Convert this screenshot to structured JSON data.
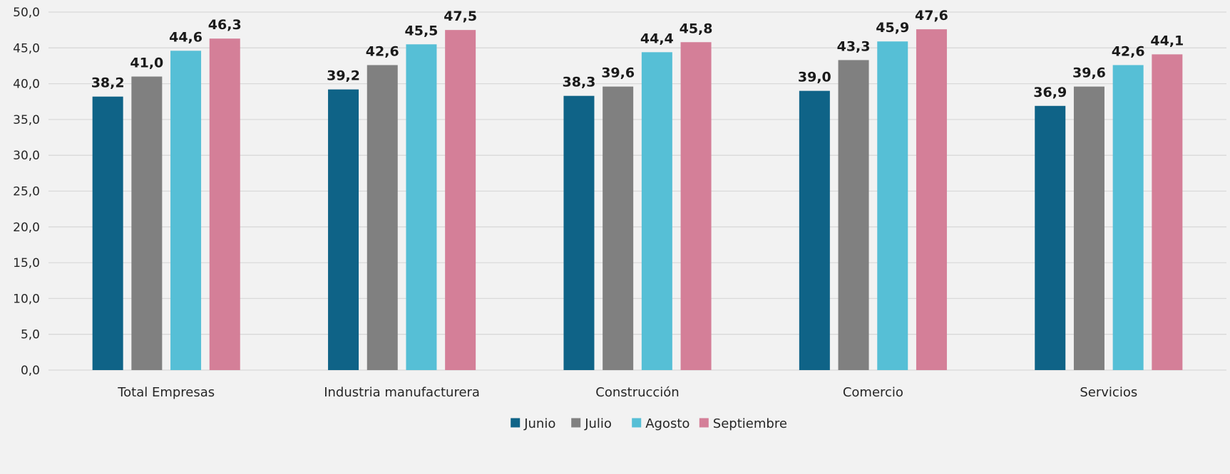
{
  "chart_data": {
    "type": "bar",
    "title": "",
    "xlabel": "",
    "ylabel": "",
    "ylim": [
      0,
      50
    ],
    "yticks": [
      "0,0",
      "5,0",
      "10,0",
      "15,0",
      "20,0",
      "25,0",
      "30,0",
      "35,0",
      "40,0",
      "45,0",
      "50,0"
    ],
    "grid": true,
    "legend_position": "bottom",
    "categories": [
      "Total Empresas",
      "Industria manufacturera",
      "Construcción",
      "Comercio",
      "Servicios"
    ],
    "series": [
      {
        "name": "Junio",
        "color": "#0f6387",
        "values": [
          38.2,
          39.2,
          38.3,
          39.0,
          36.9
        ],
        "labels": [
          "38,2",
          "39,2",
          "38,3",
          "39,0",
          "36,9"
        ]
      },
      {
        "name": "Julio",
        "color": "#808080",
        "values": [
          41.0,
          42.6,
          39.6,
          43.3,
          39.6
        ],
        "labels": [
          "41,0",
          "42,6",
          "39,6",
          "43,3",
          "39,6"
        ]
      },
      {
        "name": "Agosto",
        "color": "#56bfd6",
        "values": [
          44.6,
          45.5,
          44.4,
          45.9,
          42.6
        ],
        "labels": [
          "44,6",
          "45,5",
          "44,4",
          "45,9",
          "42,6"
        ]
      },
      {
        "name": "Septiembre",
        "color": "#d47f98",
        "values": [
          46.3,
          47.5,
          45.8,
          47.6,
          44.1
        ],
        "labels": [
          "46,3",
          "47,5",
          "45,8",
          "47,6",
          "44,1"
        ]
      }
    ]
  }
}
